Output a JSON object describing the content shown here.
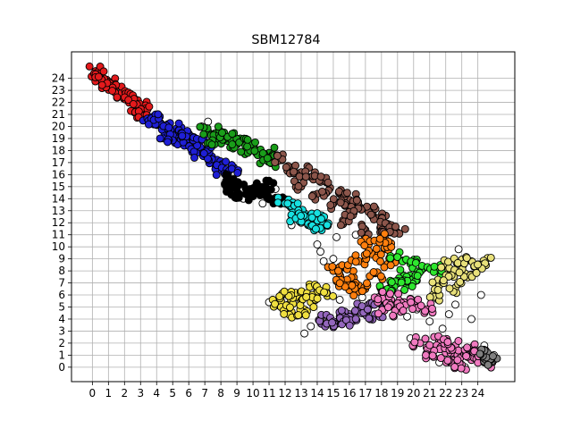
{
  "chart_data": {
    "type": "scatter",
    "title": "SBM12784",
    "xlabel": "",
    "ylabel": "",
    "xlim": [
      -1.3,
      26.3
    ],
    "ylim": [
      -1.2,
      26.2
    ],
    "xticks": [
      0,
      1,
      2,
      3,
      4,
      5,
      6,
      7,
      8,
      9,
      10,
      11,
      12,
      13,
      14,
      15,
      16,
      17,
      18,
      19,
      20,
      21,
      22,
      23,
      24
    ],
    "yticks": [
      0,
      1,
      2,
      3,
      4,
      5,
      6,
      7,
      8,
      9,
      10,
      11,
      12,
      13,
      14,
      15,
      16,
      17,
      18,
      19,
      20,
      21,
      22,
      23,
      24
    ],
    "grid": true,
    "marker_edge_color": "#000000",
    "unassigned_color": "#ffffff",
    "clusters": [
      {
        "color": "#e41a1c",
        "points": [
          [
            0.2,
            24.6
          ],
          [
            0.6,
            24.1
          ],
          [
            1.0,
            23.6
          ],
          [
            1.4,
            23.2
          ],
          [
            1.8,
            22.8
          ],
          [
            2.2,
            22.4
          ],
          [
            2.6,
            22.0
          ],
          [
            3.0,
            21.6
          ],
          [
            2.8,
            21.4
          ],
          [
            3.2,
            21.2
          ],
          [
            1.2,
            23.4
          ],
          [
            0.8,
            23.9
          ]
        ]
      },
      {
        "color": "#1f1fd6",
        "points": [
          [
            3.6,
            20.6
          ],
          [
            4.0,
            20.3
          ],
          [
            4.4,
            20.0
          ],
          [
            4.8,
            19.6
          ],
          [
            5.2,
            19.3
          ],
          [
            5.6,
            19.0
          ],
          [
            6.0,
            18.7
          ],
          [
            6.4,
            18.3
          ],
          [
            6.8,
            17.9
          ],
          [
            7.2,
            17.4
          ],
          [
            7.6,
            16.9
          ],
          [
            8.0,
            16.4
          ],
          [
            8.4,
            16.0
          ],
          [
            5.2,
            19.8
          ],
          [
            6.0,
            19.4
          ],
          [
            6.6,
            18.6
          ],
          [
            7.0,
            18.0
          ],
          [
            4.6,
            19.2
          ],
          [
            3.8,
            20.8
          ],
          [
            8.8,
            16.6
          ]
        ]
      },
      {
        "color": "#1a9e1a",
        "points": [
          [
            7.2,
            19.6
          ],
          [
            7.8,
            19.2
          ],
          [
            8.4,
            18.8
          ],
          [
            9.0,
            18.5
          ],
          [
            9.6,
            18.2
          ],
          [
            10.2,
            17.8
          ],
          [
            10.8,
            17.4
          ],
          [
            11.4,
            17.1
          ],
          [
            8.2,
            19.5
          ],
          [
            9.2,
            19.0
          ],
          [
            10.0,
            18.4
          ],
          [
            11.0,
            17.8
          ],
          [
            7.6,
            18.6
          ]
        ]
      },
      {
        "color": "#000000",
        "points": [
          [
            8.6,
            15.6
          ],
          [
            9.2,
            15.2
          ],
          [
            9.8,
            14.8
          ],
          [
            10.4,
            14.5
          ],
          [
            11.0,
            14.1
          ],
          [
            11.6,
            13.8
          ],
          [
            9.0,
            14.4
          ],
          [
            10.0,
            14.2
          ],
          [
            10.8,
            15.0
          ],
          [
            8.4,
            15.0
          ]
        ]
      },
      {
        "color": "#8c564b",
        "points": [
          [
            11.8,
            17.2
          ],
          [
            12.4,
            16.6
          ],
          [
            13.0,
            16.2
          ],
          [
            13.6,
            15.8
          ],
          [
            14.2,
            15.4
          ],
          [
            14.8,
            14.9
          ],
          [
            15.4,
            14.4
          ],
          [
            16.0,
            13.9
          ],
          [
            16.6,
            13.4
          ],
          [
            17.2,
            12.9
          ],
          [
            17.8,
            12.4
          ],
          [
            18.4,
            11.9
          ],
          [
            19.0,
            11.2
          ],
          [
            14.0,
            14.4
          ],
          [
            15.0,
            13.6
          ],
          [
            16.2,
            12.8
          ],
          [
            17.0,
            11.4
          ],
          [
            15.6,
            12.2
          ],
          [
            18.2,
            10.8
          ],
          [
            13.0,
            15.0
          ]
        ]
      },
      {
        "color": "#17e0e0",
        "points": [
          [
            12.0,
            13.6
          ],
          [
            12.6,
            13.2
          ],
          [
            13.2,
            12.8
          ],
          [
            13.8,
            12.4
          ],
          [
            14.4,
            12.0
          ],
          [
            12.4,
            12.6
          ],
          [
            13.4,
            12.2
          ],
          [
            14.0,
            11.6
          ]
        ]
      },
      {
        "color": "#ff7f0e",
        "points": [
          [
            15.0,
            8.0
          ],
          [
            15.8,
            8.2
          ],
          [
            16.6,
            8.8
          ],
          [
            17.4,
            9.4
          ],
          [
            18.2,
            9.8
          ],
          [
            16.2,
            7.2
          ],
          [
            17.0,
            6.6
          ],
          [
            17.6,
            7.8
          ],
          [
            18.4,
            8.6
          ],
          [
            16.0,
            6.4
          ],
          [
            15.4,
            7.0
          ],
          [
            17.2,
            10.2
          ],
          [
            18.0,
            10.6
          ]
        ]
      },
      {
        "color": "#2ee62e",
        "points": [
          [
            19.0,
            9.2
          ],
          [
            19.8,
            8.6
          ],
          [
            20.6,
            8.2
          ],
          [
            21.4,
            8.0
          ],
          [
            19.4,
            7.6
          ],
          [
            20.2,
            7.2
          ],
          [
            18.6,
            7.0
          ],
          [
            19.6,
            6.8
          ],
          [
            18.4,
            6.4
          ]
        ]
      },
      {
        "color": "#e8e07a",
        "points": [
          [
            22.0,
            8.4
          ],
          [
            22.8,
            8.6
          ],
          [
            23.6,
            8.8
          ],
          [
            24.4,
            8.8
          ],
          [
            22.4,
            7.6
          ],
          [
            23.2,
            7.8
          ],
          [
            21.6,
            6.8
          ],
          [
            22.6,
            6.6
          ],
          [
            21.2,
            6.0
          ],
          [
            24.0,
            8.2
          ]
        ]
      },
      {
        "color": "#f0e040",
        "points": [
          [
            11.6,
            5.4
          ],
          [
            12.2,
            5.2
          ],
          [
            12.8,
            5.8
          ],
          [
            13.4,
            6.0
          ],
          [
            14.0,
            6.4
          ],
          [
            14.6,
            6.2
          ],
          [
            12.4,
            4.6
          ],
          [
            13.2,
            4.8
          ],
          [
            11.8,
            6.0
          ],
          [
            13.6,
            5.4
          ]
        ]
      },
      {
        "color": "#9467bd",
        "points": [
          [
            14.2,
            4.0
          ],
          [
            14.8,
            3.8
          ],
          [
            15.4,
            4.2
          ],
          [
            16.0,
            4.4
          ],
          [
            16.6,
            4.8
          ],
          [
            17.2,
            5.0
          ],
          [
            15.2,
            3.6
          ],
          [
            16.2,
            3.8
          ],
          [
            17.6,
            4.4
          ],
          [
            18.0,
            5.2
          ]
        ]
      },
      {
        "color": "#f07ac0",
        "points": [
          [
            17.8,
            5.8
          ],
          [
            18.6,
            5.6
          ],
          [
            19.4,
            5.4
          ],
          [
            20.2,
            5.2
          ],
          [
            20.8,
            4.8
          ],
          [
            18.2,
            4.8
          ],
          [
            19.2,
            4.6
          ],
          [
            20.4,
            2.0
          ],
          [
            21.2,
            1.6
          ],
          [
            22.0,
            1.2
          ],
          [
            22.8,
            0.8
          ],
          [
            23.6,
            0.6
          ],
          [
            24.4,
            0.4
          ],
          [
            21.6,
            2.2
          ],
          [
            22.6,
            1.8
          ],
          [
            23.4,
            1.4
          ],
          [
            24.2,
            1.2
          ],
          [
            20.8,
            1.0
          ],
          [
            22.2,
            0.4
          ],
          [
            23.0,
            0.2
          ]
        ]
      },
      {
        "color": "#808080",
        "points": [
          [
            24.8,
            0.4
          ],
          [
            25.0,
            0.6
          ],
          [
            24.6,
            1.2
          ]
        ]
      }
    ],
    "unassigned_points": [
      [
        7.2,
        20.4
      ],
      [
        6.8,
        20.0
      ],
      [
        11.4,
        14.8
      ],
      [
        11.0,
        15.2
      ],
      [
        10.6,
        13.6
      ],
      [
        12.4,
        11.8
      ],
      [
        14.0,
        10.2
      ],
      [
        14.2,
        9.6
      ],
      [
        15.2,
        10.8
      ],
      [
        14.4,
        8.8
      ],
      [
        15.0,
        9.0
      ],
      [
        11.0,
        5.4
      ],
      [
        13.2,
        2.8
      ],
      [
        13.6,
        3.4
      ],
      [
        15.4,
        5.6
      ],
      [
        16.8,
        5.8
      ],
      [
        19.6,
        4.2
      ],
      [
        20.2,
        4.8
      ],
      [
        21.0,
        3.8
      ],
      [
        21.8,
        3.2
      ],
      [
        22.2,
        4.4
      ],
      [
        22.6,
        5.2
      ],
      [
        22.8,
        9.8
      ],
      [
        23.6,
        4.0
      ],
      [
        24.2,
        6.0
      ],
      [
        19.8,
        2.4
      ],
      [
        20.0,
        1.8
      ],
      [
        21.0,
        1.2
      ],
      [
        21.6,
        0.4
      ],
      [
        23.2,
        0.0
      ],
      [
        24.4,
        1.8
      ],
      [
        25.0,
        1.0
      ],
      [
        16.4,
        11.0
      ],
      [
        13.0,
        12.0
      ],
      [
        9.4,
        14.0
      ]
    ]
  }
}
